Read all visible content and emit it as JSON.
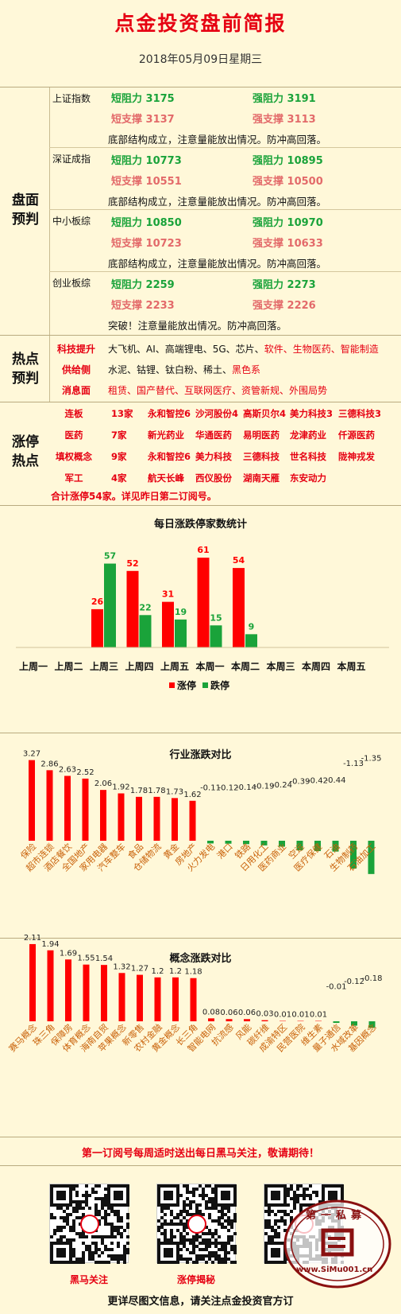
{
  "header": {
    "title": "点金投资盘前简报",
    "date": "2018年05月09日星期三"
  },
  "forecast": {
    "label_1": "盘面",
    "label_2": "预判",
    "indices": [
      {
        "name": "上证指数",
        "short_res": "短阻力 3175",
        "strong_res": "强阻力 3191",
        "short_sup": "短支撑 3137",
        "strong_sup": "强支撑 3113",
        "note": "底部结构成立，注意量能放出情况。防冲高回落。"
      },
      {
        "name": "深证成指",
        "short_res": "短阻力 10773",
        "strong_res": "强阻力 10895",
        "short_sup": "短支撑 10551",
        "strong_sup": "强支撑 10500",
        "note": "底部结构成立，注意量能放出情况。防冲高回落。"
      },
      {
        "name": "中小板综",
        "short_res": "短阻力 10850",
        "strong_res": "强阻力 10970",
        "short_sup": "短支撑 10723",
        "strong_sup": "强支撑 10633",
        "note": "底部结构成立，注意量能放出情况。防冲高回落。"
      },
      {
        "name": "创业板综",
        "short_res": "短阻力 2259",
        "strong_res": "强阻力 2273",
        "short_sup": "短支撑 2233",
        "strong_sup": "强支撑 2226",
        "note": "突破！注意量能放出情况。防冲高回落。"
      }
    ]
  },
  "hotspot": {
    "label_1": "热点",
    "label_2": "预判",
    "rows": [
      {
        "label": "科技提升",
        "text_black": "大飞机、AI、高端锂电、5G、芯片、",
        "text_red": "软件、生物医药、智能制造"
      },
      {
        "label": "供给侧",
        "text_black": "水泥、钴锂、钛白粉、稀土、",
        "text_red": "黑色系"
      },
      {
        "label": "消息面",
        "text_black": "",
        "text_red": "租赁、国产替代、互联网医疗、资管新规、外围局势"
      }
    ]
  },
  "limitup": {
    "label_1": "涨停",
    "label_2": "热点",
    "rows": [
      {
        "cat": "连板",
        "count": "13家",
        "stocks": [
          "永和智控6",
          "沙河股份4",
          "高斯贝尔4",
          "美力科技3",
          "三德科技3"
        ]
      },
      {
        "cat": "医药",
        "count": "7家",
        "stocks": [
          "新光药业",
          "华通医药",
          "易明医药",
          "龙津药业",
          "仟源医药"
        ]
      },
      {
        "cat": "填权概念",
        "count": "9家",
        "stocks": [
          "永和智控6",
          "美力科技",
          "三德科技",
          "世名科技",
          "陇神戎发"
        ]
      },
      {
        "cat": "军工",
        "count": "4家",
        "stocks": [
          "航天长峰",
          "西仪股份",
          "湖南天雁",
          "东安动力"
        ]
      }
    ],
    "summary": "合计涨停54家。详见昨日第二订阅号。"
  },
  "chart_data": [
    {
      "type": "bar",
      "title": "每日涨跌停家数统计",
      "categories": [
        "上周一",
        "上周二",
        "上周三",
        "上周四",
        "上周五",
        "本周一",
        "本周二",
        "本周三",
        "本周四",
        "本周五"
      ],
      "series": [
        {
          "name": "涨停",
          "color": "#FF0000",
          "values": [
            null,
            null,
            26,
            52,
            31,
            61,
            54,
            null,
            null,
            null
          ]
        },
        {
          "name": "跌停",
          "color": "#1AA33A",
          "values": [
            null,
            null,
            57,
            22,
            19,
            15,
            9,
            null,
            null,
            null
          ]
        }
      ],
      "ylim": [
        0,
        70
      ]
    },
    {
      "type": "bar",
      "title": "行业涨跌对比",
      "categories": [
        "保险",
        "超市连锁",
        "酒店餐饮",
        "全国地产",
        "家用电器",
        "汽车整车",
        "食品",
        "仓储物流",
        "黄金",
        "房地产",
        "火力发电",
        "港口",
        "铁路",
        "日用化工",
        "医药商业",
        "空运",
        "医疗保健",
        "石油",
        "生物制药",
        "石油加工"
      ],
      "values": [
        3.27,
        2.86,
        2.63,
        2.52,
        2.06,
        1.92,
        1.78,
        1.78,
        1.73,
        1.62,
        -0.11,
        -0.12,
        -0.14,
        -0.19,
        -0.24,
        -0.39,
        -0.42,
        -0.44,
        -1.13,
        -1.35
      ],
      "colors": {
        "up": "#FF0000",
        "down": "#1AA33A"
      }
    },
    {
      "type": "bar",
      "title": "概念涨跌对比",
      "categories": [
        "赛马概念",
        "珠三角",
        "保障房",
        "体育概念",
        "海南自贸",
        "苹果概念",
        "新零售",
        "农村金融",
        "黄金概念",
        "长三角",
        "智能电网",
        "抗流感",
        "风能",
        "碳纤维",
        "成渝特区",
        "民营医院",
        "维生素",
        "量子通信",
        "水域改革",
        "基因概念"
      ],
      "values": [
        2.11,
        1.94,
        1.69,
        1.55,
        1.54,
        1.32,
        1.27,
        1.2,
        1.2,
        1.18,
        0.08,
        0.06,
        0.06,
        0.03,
        0.01,
        0.01,
        0.01,
        -0.01,
        -0.12,
        -0.18
      ],
      "colors": {
        "up": "#FF0000",
        "down": "#1AA33A"
      }
    }
  ],
  "notice": "第一订阅号每周适时送出每日黑马关注，敬请期待！",
  "qr": [
    {
      "label": "黑马关注"
    },
    {
      "label": "涨停揭秘"
    },
    {
      "label": ""
    }
  ],
  "watermark": {
    "text": "第一私募",
    "url": "www.SiMu001.cn"
  },
  "footer": "更详尽图文信息，请关注点金投资官方订"
}
